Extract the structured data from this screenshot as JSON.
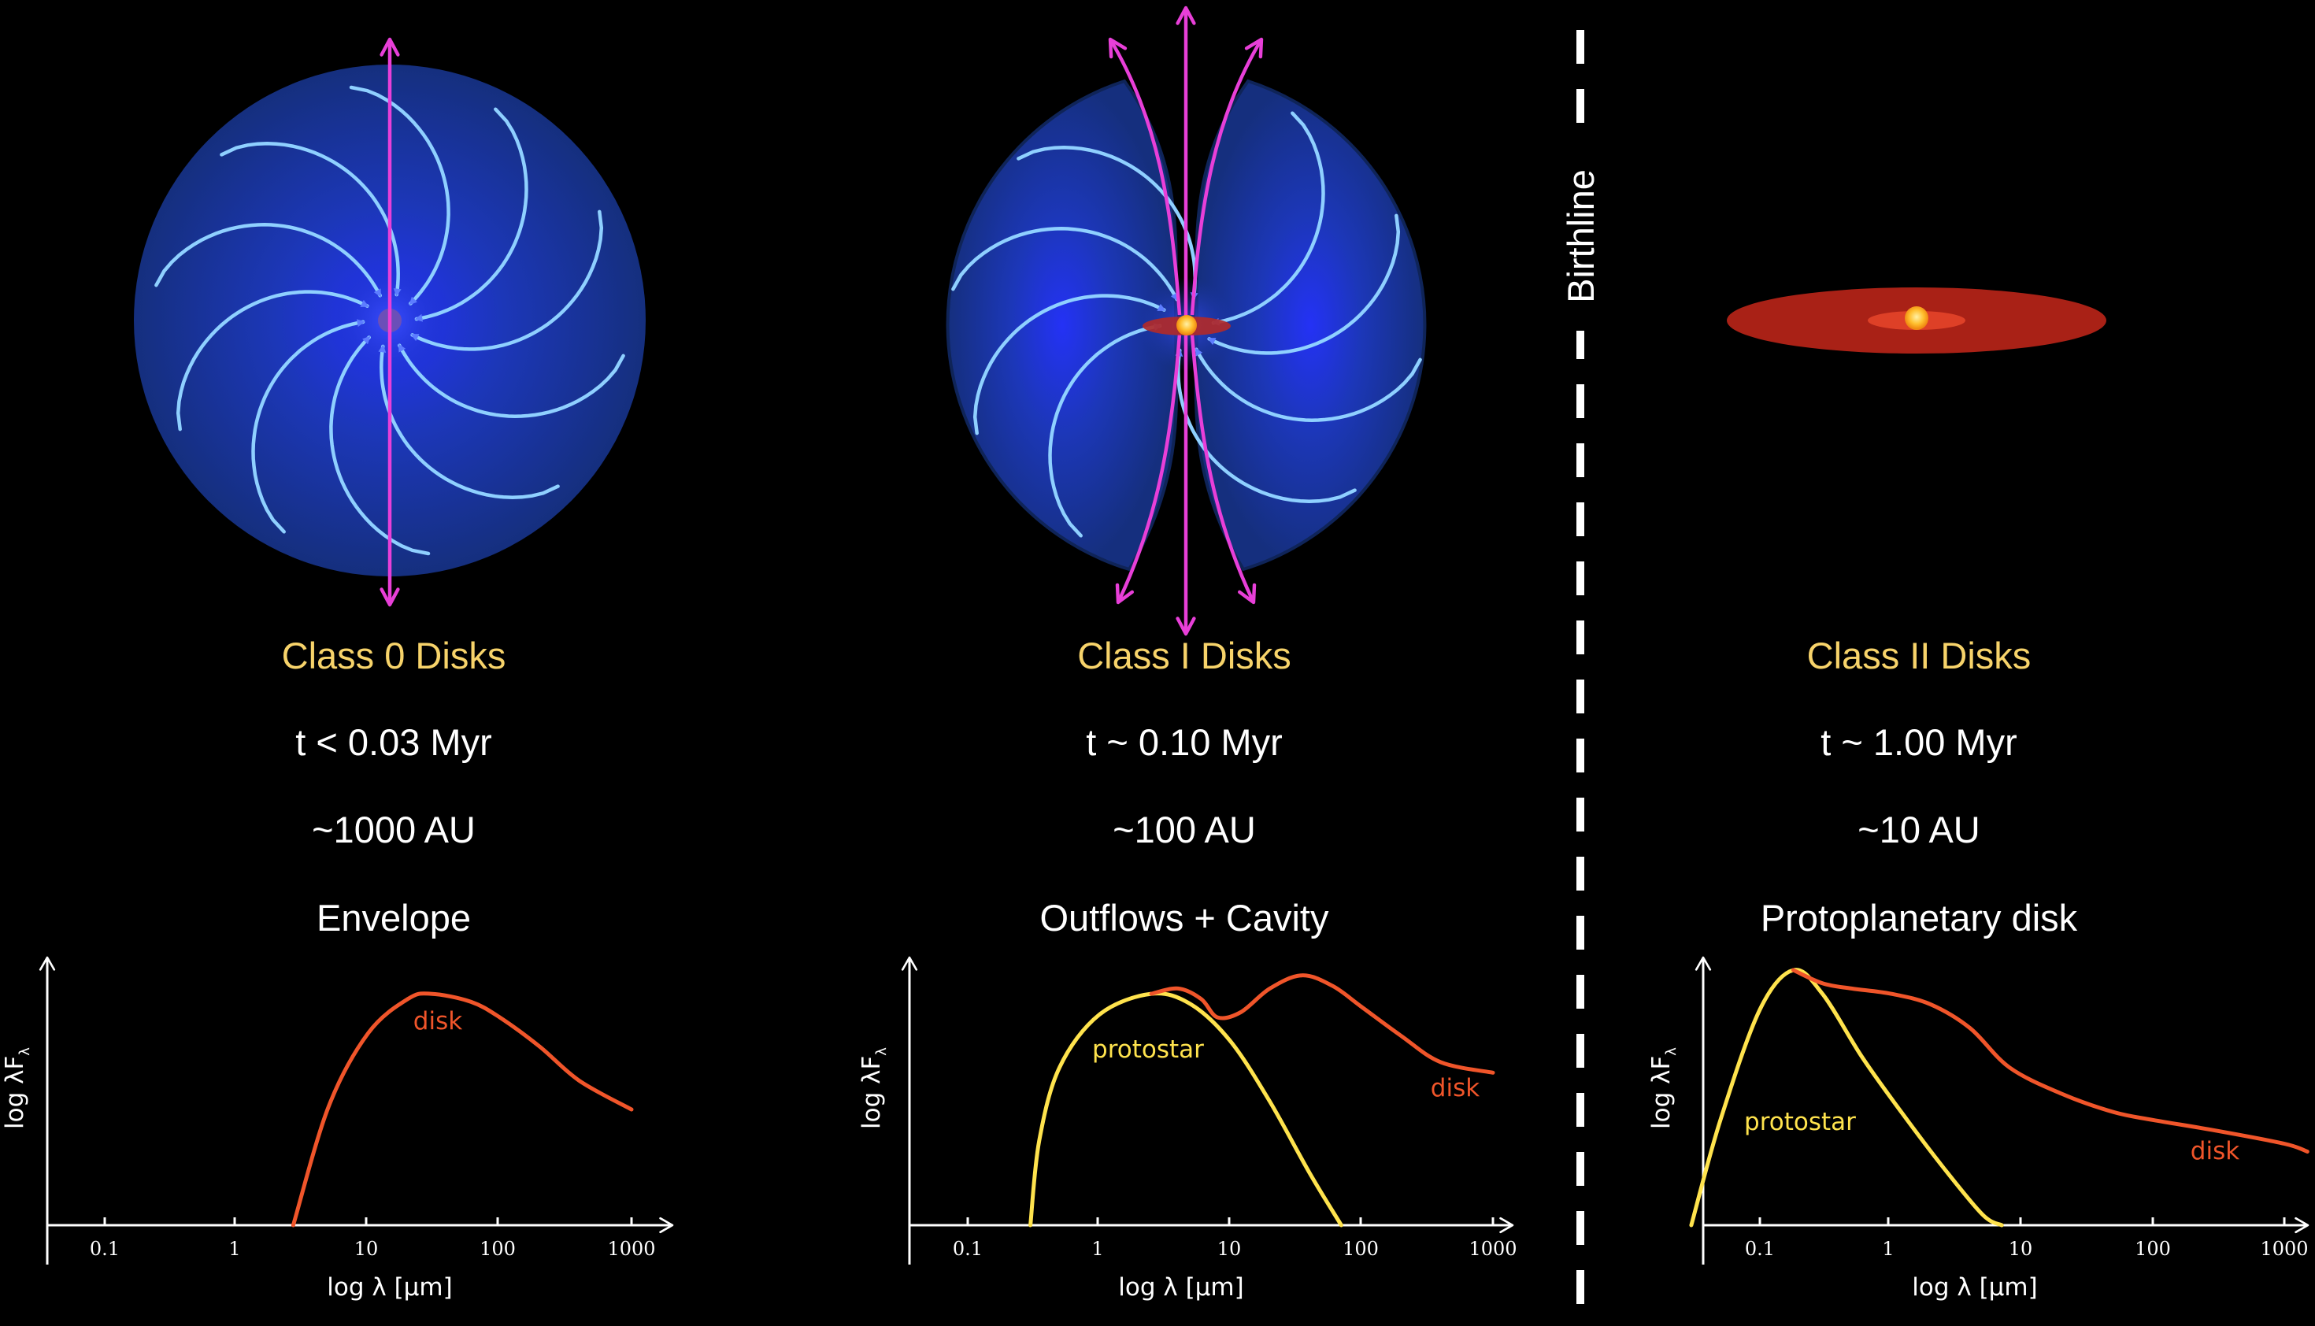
{
  "birthline_label": "Birthline",
  "colors": {
    "background": "#000000",
    "class_title": "#f7d36a",
    "text": "#ffffff",
    "envelope": "#1a3ea8",
    "infall_arrows": "#8fd0ff",
    "outflow_arrows": "#e83fd8",
    "disk": "#a92116",
    "disk_curve": "#f0552a",
    "protostar_curve": "#ffe34d",
    "birthline": "#ffffff"
  },
  "panels": [
    {
      "title": "Class 0 Disks",
      "age": "t < 0.03 Myr",
      "size": "~1000 AU",
      "feature": "Envelope",
      "illustration_icon": "envelope-infall-icon"
    },
    {
      "title": "Class I Disks",
      "age": "t ~ 0.10 Myr",
      "size": "~100 AU",
      "feature": "Outflows + Cavity",
      "illustration_icon": "envelope-outflow-cavity-icon"
    },
    {
      "title": "Class II Disks",
      "age": "t ~ 1.00 Myr",
      "size": "~10 AU",
      "feature": "Protoplanetary disk",
      "illustration_icon": "protoplanetary-disk-icon"
    }
  ],
  "chart_data": [
    {
      "type": "line",
      "title": "",
      "xlabel": "log λ [μm]",
      "ylabel": "log λF",
      "ylabel_subscript": "λ",
      "xscale": "log",
      "x_ticks": [
        "0.1",
        "1",
        "10",
        "100",
        "1000"
      ],
      "xlim": [
        0.03,
        1500
      ],
      "y_ticks": [],
      "series": [
        {
          "name": "disk",
          "color": "#f0552a",
          "x": [
            2.7,
            5,
            10,
            20,
            30,
            60,
            100,
            200,
            400,
            1000
          ],
          "y": [
            0.0,
            0.45,
            0.73,
            0.86,
            0.88,
            0.85,
            0.79,
            0.68,
            0.55,
            0.44
          ]
        }
      ]
    },
    {
      "type": "line",
      "title": "",
      "xlabel": "log λ [μm]",
      "ylabel": "log λF",
      "ylabel_subscript": "λ",
      "xscale": "log",
      "x_ticks": [
        "0.1",
        "1",
        "10",
        "100",
        "1000"
      ],
      "xlim": [
        0.03,
        1500
      ],
      "y_ticks": [],
      "series": [
        {
          "name": "protostar",
          "color": "#ffe34d",
          "x": [
            0.3,
            0.35,
            0.5,
            1,
            2.5,
            5,
            10,
            20,
            40,
            70
          ],
          "y": [
            0.0,
            0.32,
            0.6,
            0.8,
            0.88,
            0.84,
            0.7,
            0.47,
            0.2,
            0.0
          ]
        },
        {
          "name": "disk",
          "color": "#f0552a",
          "x": [
            2.5,
            4,
            6,
            8,
            12,
            20,
            35,
            60,
            100,
            200,
            400,
            1000
          ],
          "y": [
            0.88,
            0.9,
            0.86,
            0.79,
            0.81,
            0.9,
            0.95,
            0.91,
            0.83,
            0.72,
            0.62,
            0.58
          ]
        }
      ]
    },
    {
      "type": "line",
      "title": "",
      "xlabel": "log λ [μm]",
      "ylabel": "log λF",
      "ylabel_subscript": "λ",
      "xscale": "log",
      "x_ticks": [
        "0.1",
        "1",
        "10",
        "100",
        "1000"
      ],
      "xlim": [
        0.03,
        1500
      ],
      "y_ticks": [],
      "series": [
        {
          "name": "protostar",
          "color": "#ffe34d",
          "x": [
            0.03,
            0.05,
            0.1,
            0.18,
            0.3,
            0.6,
            1.2,
            2.5,
            5,
            7
          ],
          "y": [
            0.0,
            0.4,
            0.82,
            0.97,
            0.88,
            0.64,
            0.43,
            0.22,
            0.04,
            0.0
          ]
        },
        {
          "name": "disk",
          "color": "#f0552a",
          "x": [
            0.18,
            0.3,
            0.5,
            1,
            2,
            4,
            8,
            20,
            50,
            100,
            300,
            1000,
            1500
          ],
          "y": [
            0.97,
            0.92,
            0.9,
            0.88,
            0.84,
            0.75,
            0.6,
            0.5,
            0.43,
            0.4,
            0.36,
            0.31,
            0.28
          ]
        }
      ]
    }
  ]
}
